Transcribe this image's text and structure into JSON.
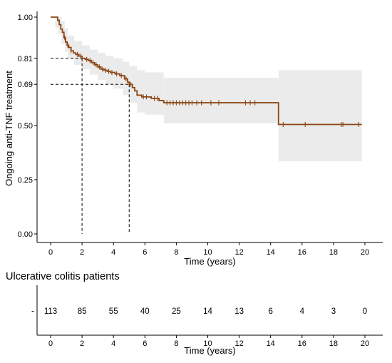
{
  "chart_data": [
    {
      "type": "line",
      "subtype": "kaplan-meier",
      "title": "",
      "xlabel": "Time (years)",
      "ylabel": "Ongoing anti-TNF treatment",
      "xlim": [
        -1,
        21
      ],
      "ylim": [
        0,
        1
      ],
      "x_ticks": [
        0,
        2,
        4,
        6,
        8,
        10,
        12,
        14,
        16,
        18,
        20
      ],
      "y_ticks": [
        0.0,
        0.25,
        0.5,
        0.69,
        0.81,
        1.0
      ],
      "y_tick_labels": [
        "0.00",
        "0.25",
        "0.50",
        "0.69",
        "0.81",
        "1.00"
      ],
      "grid": false,
      "colors": {
        "curve": "#8B4513",
        "ci_band": "#ebebeb",
        "reference": "#000000"
      },
      "series": [
        {
          "values_step": [
            [
              0,
              1.0
            ],
            [
              0.45,
              0.985
            ],
            [
              0.55,
              0.965
            ],
            [
              0.65,
              0.945
            ],
            [
              0.75,
              0.93
            ],
            [
              0.85,
              0.905
            ],
            [
              0.95,
              0.885
            ],
            [
              1.05,
              0.87
            ],
            [
              1.15,
              0.86
            ],
            [
              1.3,
              0.845
            ],
            [
              1.45,
              0.835
            ],
            [
              1.6,
              0.828
            ],
            [
              1.8,
              0.82
            ],
            [
              2.0,
              0.81
            ],
            [
              2.2,
              0.805
            ],
            [
              2.4,
              0.8
            ],
            [
              2.6,
              0.79
            ],
            [
              2.8,
              0.78
            ],
            [
              3.0,
              0.77
            ],
            [
              3.2,
              0.76
            ],
            [
              3.4,
              0.755
            ],
            [
              3.6,
              0.75
            ],
            [
              3.8,
              0.745
            ],
            [
              4.1,
              0.738
            ],
            [
              4.4,
              0.73
            ],
            [
              4.7,
              0.715
            ],
            [
              4.9,
              0.7
            ],
            [
              5.0,
              0.69
            ],
            [
              5.2,
              0.675
            ],
            [
              5.35,
              0.66
            ],
            [
              5.5,
              0.64
            ],
            [
              5.8,
              0.632
            ],
            [
              6.4,
              0.625
            ],
            [
              6.9,
              0.615
            ],
            [
              7.2,
              0.605
            ],
            [
              14.5,
              0.505
            ]
          ],
          "end_x": 19.8,
          "censor_times": [
            0.9,
            1.1,
            1.3,
            1.7,
            1.9,
            2.3,
            2.5,
            2.7,
            2.9,
            3.1,
            3.3,
            3.5,
            3.7,
            3.9,
            4.2,
            4.5,
            4.8,
            5.1,
            5.9,
            6.1,
            6.6,
            6.8,
            7.4,
            7.6,
            7.8,
            8.0,
            8.2,
            8.4,
            8.6,
            8.8,
            9.0,
            9.3,
            9.6,
            10.2,
            10.7,
            12.4,
            12.7,
            13.0,
            14.8,
            16.2,
            18.5,
            18.6,
            19.6
          ]
        }
      ],
      "ci_band": [
        {
          "x0": 0,
          "x1": 0.3,
          "lower": 1.0,
          "upper": 1.0
        },
        {
          "x0": 0.3,
          "x1": 0.5,
          "lower": 0.95,
          "upper": 1.0
        },
        {
          "x0": 0.5,
          "x1": 0.7,
          "lower": 0.92,
          "upper": 1.0
        },
        {
          "x0": 0.7,
          "x1": 0.9,
          "lower": 0.875,
          "upper": 0.98
        },
        {
          "x0": 0.9,
          "x1": 1.1,
          "lower": 0.84,
          "upper": 0.95
        },
        {
          "x0": 1.1,
          "x1": 1.5,
          "lower": 0.81,
          "upper": 0.915
        },
        {
          "x0": 1.5,
          "x1": 2.0,
          "lower": 0.78,
          "upper": 0.89
        },
        {
          "x0": 2.0,
          "x1": 2.5,
          "lower": 0.76,
          "upper": 0.87
        },
        {
          "x0": 2.5,
          "x1": 3.0,
          "lower": 0.735,
          "upper": 0.85
        },
        {
          "x0": 3.0,
          "x1": 3.5,
          "lower": 0.71,
          "upper": 0.835
        },
        {
          "x0": 3.5,
          "x1": 4.0,
          "lower": 0.69,
          "upper": 0.82
        },
        {
          "x0": 4.0,
          "x1": 4.6,
          "lower": 0.67,
          "upper": 0.81
        },
        {
          "x0": 4.6,
          "x1": 5.0,
          "lower": 0.64,
          "upper": 0.795
        },
        {
          "x0": 5.0,
          "x1": 5.5,
          "lower": 0.605,
          "upper": 0.775
        },
        {
          "x0": 5.5,
          "x1": 6.0,
          "lower": 0.56,
          "upper": 0.755
        },
        {
          "x0": 6.0,
          "x1": 7.2,
          "lower": 0.55,
          "upper": 0.745
        },
        {
          "x0": 7.2,
          "x1": 14.5,
          "lower": 0.51,
          "upper": 0.72
        },
        {
          "x0": 14.5,
          "x1": 19.8,
          "lower": 0.335,
          "upper": 0.755
        }
      ],
      "reference_lines": [
        {
          "x": 2,
          "y": 0.81
        },
        {
          "x": 5,
          "y": 0.69
        }
      ]
    },
    {
      "type": "table",
      "title": "Ulcerative colitis patients",
      "xlabel": "Time (years)",
      "x_ticks": [
        0,
        2,
        4,
        6,
        8,
        10,
        12,
        14,
        16,
        18,
        20
      ],
      "ytick_marker": "-",
      "numbers_at_risk": [
        "113",
        "85",
        "55",
        "40",
        "25",
        "14",
        "13",
        "6",
        "4",
        "3",
        "0"
      ]
    }
  ]
}
